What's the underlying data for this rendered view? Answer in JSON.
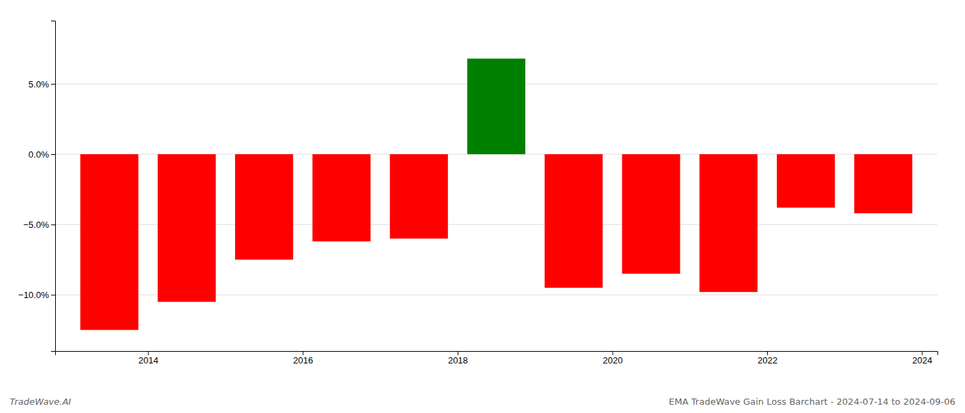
{
  "chart_data": {
    "type": "bar",
    "x": [
      2013.5,
      2014.5,
      2015.5,
      2016.5,
      2017.5,
      2018.5,
      2019.5,
      2020.5,
      2021.5,
      2022.5,
      2023.5
    ],
    "values": [
      -12.5,
      -10.5,
      -7.5,
      -6.2,
      -6.0,
      6.8,
      -9.5,
      -8.5,
      -9.8,
      -3.8,
      -4.2
    ],
    "colors": [
      "#ff0000",
      "#ff0000",
      "#ff0000",
      "#ff0000",
      "#ff0000",
      "#008000",
      "#ff0000",
      "#ff0000",
      "#ff0000",
      "#ff0000",
      "#ff0000"
    ],
    "xlim": [
      2012.8,
      2024.2
    ],
    "xticks": [
      2014,
      2016,
      2018,
      2020,
      2022,
      2024
    ],
    "ylim": [
      -14.0,
      9.5
    ],
    "yticks": [
      {
        "value": -10.0,
        "label": "−10.0%"
      },
      {
        "value": -5.0,
        "label": "−5.0%"
      },
      {
        "value": 0.0,
        "label": "0.0%"
      },
      {
        "value": 5.0,
        "label": "5.0%"
      }
    ],
    "grid": true,
    "annotations": [
      "TradeWave.AI",
      "EMA TradeWave Gain Loss Barchart - 2024-07-14 to 2024-09-06"
    ]
  }
}
